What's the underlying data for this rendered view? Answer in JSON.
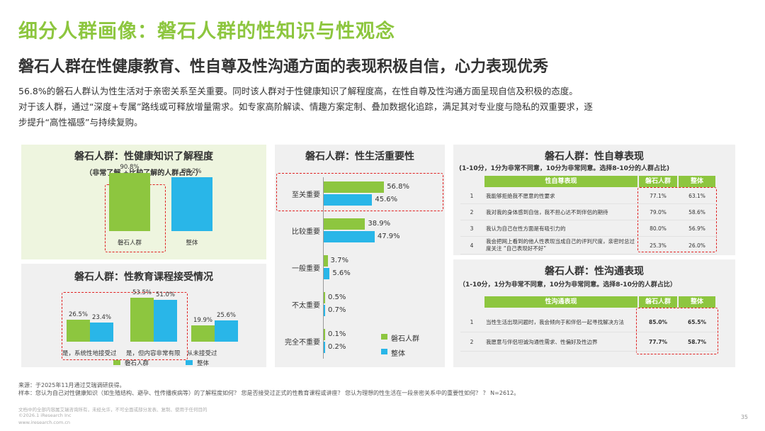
{
  "header": {
    "title": "细分人群画像：磐石人群的性知识与性观念",
    "subtitle": "磐石人群在性健康教育、性自尊及性沟通方面的表现积极自信，心力表现优秀",
    "intro1": "56.8%的磐石人群认为性生活对于亲密关系至关重要。同时该人群对于性健康知识了解程度高，在性自尊及性沟通方面呈现自信及积极的态度。",
    "intro2": "对于该人群，通过“深度+专属”路线或可释放增量需求。如专家高阶解读、情趣方案定制、叠加数据化追踪，满足其对专业度与隐私的双重要求，逐",
    "intro3": "步提升“高性福感”与持续复购。"
  },
  "colors": {
    "green": "#8dc63f",
    "blue": "#29b6e8",
    "red": "#e02020",
    "panel_bg": "#f0f0f0",
    "title_green": "#8dc63f"
  },
  "chart_data": [
    {
      "type": "bar",
      "title": "磐石人群：性健康知识了解程度",
      "subtitle": "（非常了解 +比较了解的人群占比 ）",
      "categories": [
        "磐石人群",
        "整体"
      ],
      "values": [
        90.8,
        84.2
      ],
      "value_labels": [
        "90.8%",
        "84.2%"
      ],
      "ylim": [
        0,
        100
      ]
    },
    {
      "type": "bar",
      "title": "磐石人群：性教育课程接受情况",
      "categories": [
        "是，系统性地接受过",
        "是，但内容非常有限",
        "从未接受过"
      ],
      "series": [
        {
          "name": "磐石人群",
          "values": [
            26.5,
            53.5,
            19.9
          ],
          "labels": [
            "26.5%",
            "53.5%",
            "19.9%"
          ]
        },
        {
          "name": "整体",
          "values": [
            23.4,
            51.0,
            25.6
          ],
          "labels": [
            "23.4%",
            "51.0%",
            "25.6%"
          ]
        }
      ],
      "ylim": [
        0,
        60
      ]
    },
    {
      "type": "bar",
      "orientation": "horizontal",
      "title": "磐石人群：性生活重要性",
      "categories": [
        "至关重要",
        "比较重要",
        "一般重要",
        "不太重要",
        "完全不重要"
      ],
      "series": [
        {
          "name": "磐石人群",
          "values": [
            56.8,
            38.9,
            3.7,
            0.5,
            0.1
          ],
          "labels": [
            "56.8%",
            "38.9%",
            "3.7%",
            "0.5%",
            "0.1%"
          ]
        },
        {
          "name": "整体",
          "values": [
            45.6,
            47.9,
            5.6,
            0.7,
            0.2
          ],
          "labels": [
            "45.6%",
            "47.9%",
            "5.6%",
            "0.7%",
            "0.2%"
          ]
        }
      ],
      "legend": [
        "磐石人群",
        "整体"
      ],
      "xlim": [
        0,
        60
      ]
    },
    {
      "type": "table",
      "title": "磐石人群：性自尊表现",
      "note": "(1-10分，1分为非常不同意，10分为非常同意。选择8-10分的人群占比)",
      "columns": [
        "性自尊表现",
        "磐石人群",
        "整体"
      ],
      "rows": [
        {
          "no": "1",
          "text": "我能够拒绝我不愿意的性要求",
          "a": "77.1%",
          "b": "63.1%"
        },
        {
          "no": "2",
          "text": "我对我的身体感到自信，我不担心达不到伴侣的期待",
          "a": "79.0%",
          "b": "58.6%"
        },
        {
          "no": "3",
          "text": "我认为自己在性方面是有吸引力的",
          "a": "80.0%",
          "b": "56.9%"
        },
        {
          "no": "4",
          "text": "我会把网上看到的他人性表现当成自己的评判尺度，亲密时总过度关注 “自己表现好不好”",
          "a": "25.3%",
          "b": "26.0%"
        }
      ]
    },
    {
      "type": "table",
      "title": "磐石人群：性沟通表现",
      "note": "（1-10分，1分为非常不同意，10分为非常同意。选择8-10分的人群占比）",
      "columns": [
        "性沟通表现",
        "磐石人群",
        "整体"
      ],
      "rows": [
        {
          "no": "1",
          "text": "当性生活出现问题时，我会倾向于和伴侣一起寻找解决方法",
          "a": "85.0%",
          "b": "65.5%"
        },
        {
          "no": "2",
          "text": "我愿意与伴侣坦诚沟通性需求、性偏好及性边界",
          "a": "77.7%",
          "b": "58.7%"
        }
      ]
    }
  ],
  "footer": {
    "source": "来源：于2025年11月通过艾瑞调研获得。",
    "sample": "样本：您认为自己对性健康知识（如生殖结构、避孕、性传播疾病等）的了解程度如何？ 您是否接受过正式的性教育课程或讲座？ 您认为理想的性生活在一段亲密关系中的重要性如何？ ？ N=2612。",
    "copyright1": "文档中的全部内容属艾瑞咨询所有，未经允许，不可全面或部分发表、复制、使用于任何目的",
    "copyright2": "©2026.1 iResearch Inc",
    "site": "www.iresearch.com.cn",
    "page": "35"
  }
}
